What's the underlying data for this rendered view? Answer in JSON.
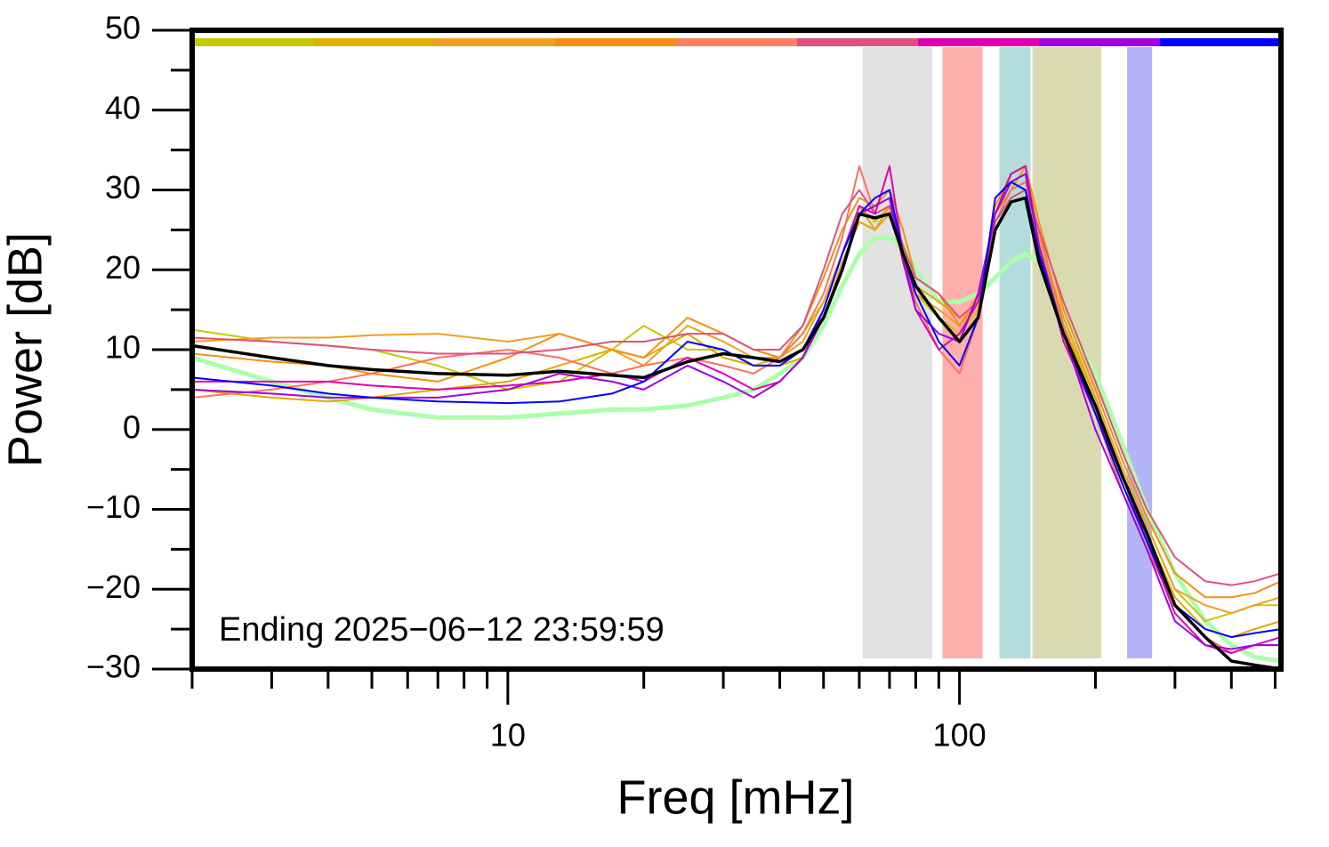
{
  "chart_data": {
    "type": "line",
    "xlabel": "Freq [mHz]",
    "ylabel": "Power [dB]",
    "annotation": "Ending 2025−06−12 23:59:59",
    "log_x": true,
    "xlim": [
      2,
      515
    ],
    "ylim": [
      -30,
      50
    ],
    "xticks": [
      10,
      100
    ],
    "xminor_ticks": [
      2,
      3,
      4,
      5,
      6,
      7,
      8,
      9,
      20,
      30,
      40,
      50,
      60,
      70,
      80,
      90,
      200,
      300,
      400,
      500
    ],
    "yticks": [
      {
        "value": -30,
        "label": "−30"
      },
      {
        "value": -20,
        "label": "−20"
      },
      {
        "value": -10,
        "label": "−10"
      },
      0,
      10,
      20,
      30,
      40,
      50
    ],
    "yminor_ticks": [
      -25,
      -15,
      -5,
      5,
      15,
      25,
      35,
      45
    ],
    "color_bar": [
      "#c8c800",
      "#dcb400",
      "#f0a020",
      "#f59010",
      "#ff8060",
      "#e05080",
      "#e000b0",
      "#a000e0",
      "#0000ff"
    ],
    "bands": [
      {
        "x0": 61,
        "x1": 87,
        "color": "#e2e2e2"
      },
      {
        "x0": 91.7,
        "x1": 112.5,
        "color": "#ffb0ac"
      },
      {
        "x0": 122.6,
        "x1": 143.7,
        "color": "#b4dcdc"
      },
      {
        "x0": 145,
        "x1": 206,
        "color": "#dadab2"
      },
      {
        "x0": 235,
        "x1": 267,
        "color": "#b4b4f8"
      }
    ],
    "x": [
      2,
      3,
      4,
      5,
      7,
      10,
      13,
      17,
      20,
      25,
      30,
      35,
      40,
      45,
      50,
      55,
      60,
      65,
      70,
      75,
      80,
      90,
      100,
      110,
      120,
      130,
      140,
      150,
      170,
      200,
      230,
      260,
      300,
      350,
      400,
      450,
      515
    ],
    "series": [
      {
        "color": "#aaffaa",
        "width": 5,
        "values": [
          9,
          6,
          4,
          2.5,
          1.5,
          1.5,
          2,
          2.5,
          2.5,
          3,
          4,
          5,
          7,
          9,
          13,
          18,
          22,
          24,
          24,
          23,
          20,
          16,
          16,
          17,
          19,
          21,
          22,
          21,
          14,
          7,
          -2,
          -10,
          -18,
          -24,
          -27,
          -28.5,
          -29
        ]
      },
      {
        "color": "#c8c800",
        "width": 2,
        "values": [
          12.5,
          11,
          10.5,
          10,
          8,
          5,
          6,
          10,
          13,
          10,
          10,
          8,
          9,
          12,
          16,
          22,
          28,
          26,
          28,
          23,
          17,
          14,
          12,
          15,
          26,
          29,
          30,
          23,
          13,
          4,
          -5,
          -12,
          -20,
          -24,
          -23,
          -22,
          -22
        ]
      },
      {
        "color": "#dcaa00",
        "width": 2,
        "values": [
          5,
          4,
          3.5,
          4,
          5,
          6,
          8,
          10,
          9,
          12,
          9,
          8,
          8,
          9,
          14,
          21,
          26,
          25,
          27,
          22,
          18,
          16,
          14,
          16,
          27,
          30,
          33,
          24,
          13,
          3,
          -6,
          -13,
          -21,
          -25,
          -26,
          -25,
          -24
        ]
      },
      {
        "color": "#f0a020",
        "width": 2,
        "values": [
          11,
          11.5,
          11.5,
          11.8,
          12,
          11,
          12,
          10,
          8,
          13,
          11,
          9,
          9,
          11,
          16,
          22,
          28,
          25,
          28,
          21,
          17,
          15,
          13,
          17,
          27,
          31,
          32,
          24,
          14,
          4,
          -5,
          -12,
          -20,
          -22,
          -23,
          -22,
          -21
        ]
      },
      {
        "color": "#f59010",
        "width": 2,
        "values": [
          9.5,
          8.5,
          8,
          7,
          6,
          9,
          12,
          10,
          9,
          14,
          12,
          10,
          9,
          13,
          19,
          25,
          29,
          28,
          30,
          25,
          19,
          17,
          13,
          16,
          28,
          32,
          33,
          26,
          15,
          5,
          -4,
          -11,
          -18,
          -21,
          -21,
          -20.5,
          -19
        ]
      },
      {
        "color": "#ff7060",
        "width": 2,
        "values": [
          4,
          5,
          6,
          7,
          9,
          10,
          9,
          7,
          8,
          9,
          8,
          7,
          9,
          12,
          17,
          24,
          33,
          27,
          28,
          22,
          16,
          10,
          7,
          14,
          26,
          30,
          31,
          25,
          13,
          2,
          -8,
          -15,
          -22,
          -26,
          -28,
          -27,
          -27
        ]
      },
      {
        "color": "#e05080",
        "width": 2,
        "values": [
          11.5,
          11,
          10.5,
          10,
          9.5,
          9.5,
          10,
          11,
          11,
          12,
          12,
          10,
          10,
          13,
          20,
          27,
          30,
          27,
          28,
          23,
          19,
          17,
          14,
          16,
          26,
          29,
          30,
          25,
          16,
          6,
          -3,
          -10,
          -16,
          -19,
          -19.5,
          -19,
          -18
        ]
      },
      {
        "color": "#e000b0",
        "width": 2,
        "values": [
          6,
          6,
          6,
          5.5,
          5,
          5.5,
          6,
          7,
          6,
          9,
          7,
          5,
          6,
          9,
          15,
          22,
          28,
          27,
          33,
          22,
          15,
          10,
          12,
          16,
          27,
          32,
          33,
          23,
          11,
          2,
          -6,
          -14,
          -23,
          -27,
          -28,
          -27,
          -26
        ]
      },
      {
        "color": "#a000e0",
        "width": 2,
        "values": [
          5,
          4.5,
          4,
          4,
          4,
          5,
          7,
          6,
          5,
          8,
          6,
          4,
          6,
          9,
          14,
          20,
          27,
          28,
          29,
          21,
          15,
          12,
          11,
          17,
          27,
          31,
          32,
          23,
          12,
          0,
          -8,
          -15,
          -24,
          -27,
          -27.5,
          -27,
          -27
        ]
      },
      {
        "color": "#0000ff",
        "width": 2,
        "values": [
          6.5,
          5.5,
          4.5,
          4,
          3.5,
          3.3,
          3.5,
          4.5,
          6,
          11,
          10,
          8,
          8,
          10,
          15,
          22,
          27,
          29,
          30,
          22,
          17,
          11,
          8,
          14,
          29,
          31,
          30,
          22,
          12,
          2,
          -7,
          -14,
          -22,
          -25,
          -26,
          -25.5,
          -25
        ]
      },
      {
        "color": "#000000",
        "width": 3.5,
        "values": [
          10.5,
          9,
          8,
          7.5,
          7,
          6.8,
          7.3,
          6.8,
          6.5,
          8.5,
          9.5,
          9,
          8.5,
          10,
          14,
          20,
          27,
          26.5,
          27,
          22,
          18,
          14,
          11,
          14,
          25,
          28.5,
          29,
          21,
          12,
          3,
          -6,
          -13,
          -22,
          -26,
          -29,
          -29.5,
          -30
        ]
      }
    ]
  }
}
